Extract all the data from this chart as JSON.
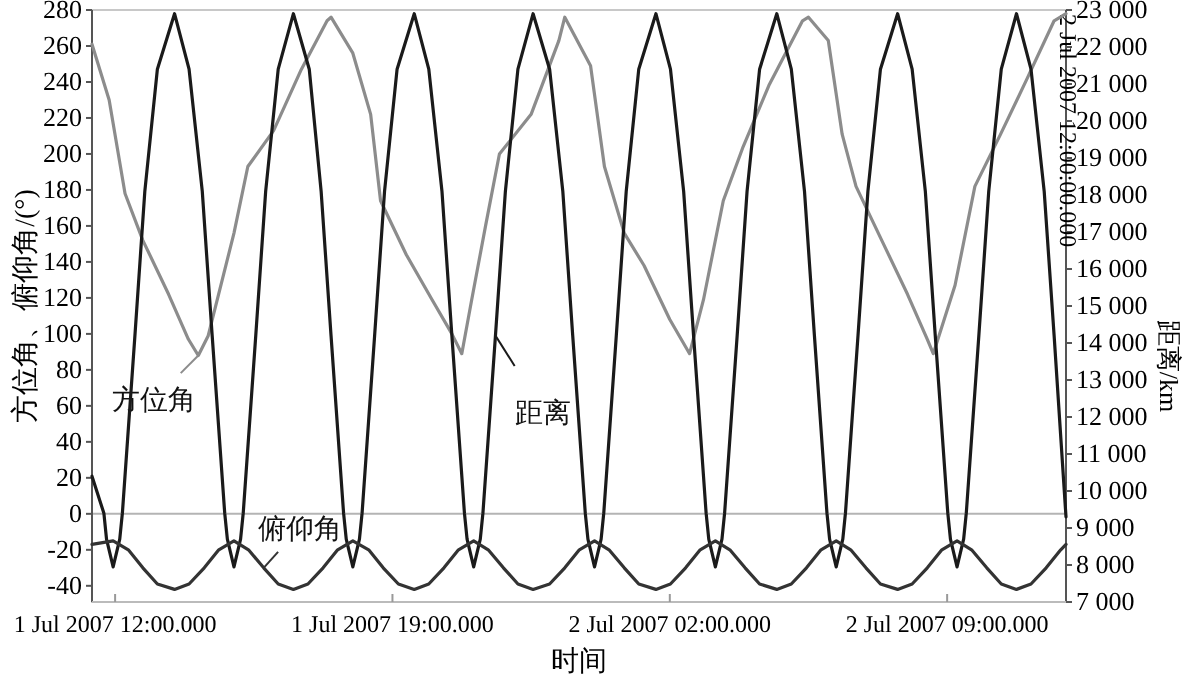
{
  "chart_data": {
    "type": "line",
    "xlabel": "时间",
    "ylabel": "方位角、俯仰角/(°)",
    "y2label": "距离/km",
    "xlim": [
      "2007-07-01T11:25",
      "2007-07-02T12:00"
    ],
    "xticks": [
      {
        "value": "2007-07-01T12:00",
        "label": "1 Jul 2007 12:00.000"
      },
      {
        "value": "2007-07-01T19:00",
        "label": "1 Jul 2007 19:00.000"
      },
      {
        "value": "2007-07-02T02:00",
        "label": "2 Jul 2007 02:00.000"
      },
      {
        "value": "2007-07-02T09:00",
        "label": "2 Jul 2007 09:00.000"
      }
    ],
    "ylim": [
      -49,
      280
    ],
    "yticks": [
      -40,
      -20,
      0,
      20,
      40,
      60,
      80,
      100,
      120,
      140,
      160,
      180,
      200,
      220,
      240,
      260,
      280
    ],
    "y2lim": [
      7000,
      23000
    ],
    "y2ticks": [
      {
        "value": 7000,
        "label": "7 000"
      },
      {
        "value": 8000,
        "label": "8 000"
      },
      {
        "value": 9000,
        "label": "9 000"
      },
      {
        "value": 10000,
        "label": "10 000"
      },
      {
        "value": 11000,
        "label": "11 000"
      },
      {
        "value": 12000,
        "label": "12 000"
      },
      {
        "value": 13000,
        "label": "13 000"
      },
      {
        "value": 14000,
        "label": "14 000"
      },
      {
        "value": 15000,
        "label": "15 000"
      },
      {
        "value": 16000,
        "label": "16 000"
      },
      {
        "value": 17000,
        "label": "17 000"
      },
      {
        "value": 18000,
        "label": "18 000"
      },
      {
        "value": 19000,
        "label": "19 000"
      },
      {
        "value": 20000,
        "label": "20 000"
      },
      {
        "value": 21000,
        "label": "21 000"
      },
      {
        "value": 22000,
        "label": "22 000"
      },
      {
        "value": 23000,
        "label": "23 000"
      }
    ],
    "ref_lines": [
      {
        "axis": "y",
        "value": 0,
        "color": "#b4b4b4"
      }
    ],
    "annotations": [
      "2 Jul 2007 12:00:00.000"
    ],
    "series": [
      {
        "name": "方位角",
        "color": "#8c8c8c",
        "x": [
          "2007-07-01T11:25",
          "2007-07-01T11:51",
          "2007-07-01T12:15",
          "2007-07-01T12:42",
          "2007-07-01T13:21",
          "2007-07-01T13:51",
          "2007-07-01T14:06",
          "2007-07-01T14:21",
          "2007-07-01T15:00",
          "2007-07-01T15:21",
          "2007-07-01T16:00",
          "2007-07-01T16:42",
          "2007-07-01T17:21",
          "2007-07-01T17:27",
          "2007-07-01T18:00",
          "2007-07-01T18:27",
          "2007-07-01T18:42",
          "2007-07-01T19:21",
          "2007-07-01T20:00",
          "2007-07-01T20:30",
          "2007-07-01T20:45",
          "2007-07-01T21:00",
          "2007-07-01T21:21",
          "2007-07-01T21:42",
          "2007-07-01T22:30",
          "2007-07-01T23:12",
          "2007-07-01T23:21",
          "2007-07-02T00:00",
          "2007-07-02T00:21",
          "2007-07-02T00:51",
          "2007-07-02T01:21",
          "2007-07-02T02:00",
          "2007-07-02T02:30",
          "2007-07-02T02:51",
          "2007-07-02T03:21",
          "2007-07-02T03:51",
          "2007-07-02T04:30",
          "2007-07-02T05:21",
          "2007-07-02T05:30",
          "2007-07-02T06:00",
          "2007-07-02T06:21",
          "2007-07-02T06:42",
          "2007-07-02T07:21",
          "2007-07-02T08:00",
          "2007-07-02T08:30",
          "2007-07-02T08:39",
          "2007-07-02T09:12",
          "2007-07-02T09:42",
          "2007-07-02T10:21",
          "2007-07-02T11:00",
          "2007-07-02T11:42",
          "2007-07-02T12:00"
        ],
        "values": [
          261,
          230,
          178,
          152,
          122,
          97,
          88,
          99,
          156,
          193,
          213,
          247,
          274,
          276,
          256,
          222,
          174,
          144,
          119,
          100,
          89,
          119,
          160,
          200,
          222,
          263,
          276,
          249,
          193,
          156,
          138,
          108,
          89,
          119,
          174,
          204,
          238,
          274,
          276,
          263,
          211,
          182,
          152,
          122,
          97,
          89,
          127,
          182,
          211,
          241,
          274,
          278
        ]
      },
      {
        "name": "距离",
        "axis": "y2",
        "color": "#1a1a1a",
        "x": [
          "2007-07-01T11:25",
          "2007-07-01T11:43",
          "2007-07-01T11:47",
          "2007-07-01T11:57",
          "2007-07-01T12:07",
          "2007-07-01T12:11",
          "2007-07-01T12:30",
          "2007-07-01T12:45",
          "2007-07-01T13:04",
          "2007-07-01T13:30",
          "2007-07-01T13:52",
          "2007-07-01T14:12",
          "2007-07-01T14:27",
          "2007-07-01T14:46",
          "2007-07-01T14:50",
          "2007-07-01T15:00",
          "2007-07-01T15:10",
          "2007-07-01T15:14",
          "2007-07-01T15:33",
          "2007-07-01T15:48",
          "2007-07-01T16:07",
          "2007-07-01T16:30",
          "2007-07-01T16:54",
          "2007-07-01T17:12",
          "2007-07-01T17:27",
          "2007-07-01T17:46",
          "2007-07-01T17:50",
          "2007-07-01T18:00",
          "2007-07-01T18:10",
          "2007-07-01T18:14",
          "2007-07-01T18:33",
          "2007-07-01T18:48",
          "2007-07-01T19:07",
          "2007-07-01T19:33",
          "2007-07-01T19:55",
          "2007-07-01T20:15",
          "2007-07-01T20:30",
          "2007-07-01T20:49",
          "2007-07-01T20:53",
          "2007-07-01T21:03",
          "2007-07-01T21:13",
          "2007-07-01T21:17",
          "2007-07-01T21:36",
          "2007-07-01T21:51",
          "2007-07-01T22:10",
          "2007-07-01T22:33",
          "2007-07-01T22:58",
          "2007-07-01T23:18",
          "2007-07-01T23:33",
          "2007-07-01T23:52",
          "2007-07-01T23:56",
          "2007-07-02T00:06",
          "2007-07-02T00:16",
          "2007-07-02T00:20",
          "2007-07-02T00:39",
          "2007-07-02T00:54",
          "2007-07-02T01:13",
          "2007-07-02T01:39",
          "2007-07-02T02:01",
          "2007-07-02T02:21",
          "2007-07-02T02:36",
          "2007-07-02T02:55",
          "2007-07-02T02:59",
          "2007-07-02T03:09",
          "2007-07-02T03:19",
          "2007-07-02T03:23",
          "2007-07-02T03:42",
          "2007-07-02T03:57",
          "2007-07-02T04:16",
          "2007-07-02T04:42",
          "2007-07-02T05:04",
          "2007-07-02T05:24",
          "2007-07-02T05:39",
          "2007-07-02T05:58",
          "2007-07-02T06:02",
          "2007-07-02T06:12",
          "2007-07-02T06:22",
          "2007-07-02T06:26",
          "2007-07-02T06:45",
          "2007-07-02T07:00",
          "2007-07-02T07:19",
          "2007-07-02T07:45",
          "2007-07-02T08:07",
          "2007-07-02T08:27",
          "2007-07-02T08:42",
          "2007-07-02T09:01",
          "2007-07-02T09:05",
          "2007-07-02T09:15",
          "2007-07-02T09:25",
          "2007-07-02T09:29",
          "2007-07-02T09:48",
          "2007-07-02T10:03",
          "2007-07-02T10:22",
          "2007-07-02T10:45",
          "2007-07-02T11:07",
          "2007-07-02T11:27",
          "2007-07-02T11:42",
          "2007-07-02T12:00"
        ],
        "values": [
          10400,
          9400,
          8700,
          7950,
          8700,
          9400,
          14200,
          18100,
          21400,
          22900,
          21400,
          18100,
          14200,
          9400,
          8700,
          7950,
          8700,
          9400,
          14200,
          18100,
          21400,
          22900,
          21400,
          18100,
          14200,
          9400,
          8700,
          7950,
          8700,
          9400,
          14200,
          18100,
          21400,
          22900,
          21400,
          18100,
          14200,
          9400,
          8700,
          7950,
          8700,
          9400,
          14200,
          18100,
          21400,
          22900,
          21400,
          18100,
          14200,
          9400,
          8700,
          7950,
          8700,
          9400,
          14200,
          18100,
          21400,
          22900,
          21400,
          18100,
          14200,
          9400,
          8700,
          7950,
          8700,
          9400,
          14200,
          18100,
          21400,
          22900,
          21400,
          18100,
          14200,
          9400,
          8700,
          7950,
          8700,
          9400,
          14200,
          18100,
          21400,
          22900,
          21400,
          18100,
          14200,
          9400,
          8700,
          7950,
          8700,
          9400,
          14200,
          18100,
          21400,
          22900,
          21400,
          18100,
          14200,
          9300
        ]
      },
      {
        "name": "俯仰角",
        "color": "#333333",
        "x": [
          "2007-07-01T11:25",
          "2007-07-01T11:57",
          "2007-07-01T12:20",
          "2007-07-01T12:42",
          "2007-07-01T13:04",
          "2007-07-01T13:30",
          "2007-07-01T13:52",
          "2007-07-01T14:15",
          "2007-07-01T14:37",
          "2007-07-01T15:00",
          "2007-07-01T15:22",
          "2007-07-01T15:45",
          "2007-07-01T16:07",
          "2007-07-01T16:30",
          "2007-07-01T16:52",
          "2007-07-01T17:15",
          "2007-07-01T17:37",
          "2007-07-01T18:00",
          "2007-07-01T18:24",
          "2007-07-01T18:46",
          "2007-07-01T19:09",
          "2007-07-01T19:33",
          "2007-07-01T19:55",
          "2007-07-01T20:18",
          "2007-07-01T20:40",
          "2007-07-01T21:03",
          "2007-07-01T21:25",
          "2007-07-01T21:48",
          "2007-07-01T22:10",
          "2007-07-01T22:33",
          "2007-07-01T22:58",
          "2007-07-01T23:21",
          "2007-07-01T23:43",
          "2007-07-02T00:06",
          "2007-07-02T00:28",
          "2007-07-02T00:51",
          "2007-07-02T01:13",
          "2007-07-02T01:39",
          "2007-07-02T02:01",
          "2007-07-02T02:24",
          "2007-07-02T02:46",
          "2007-07-02T03:09",
          "2007-07-02T03:31",
          "2007-07-02T03:54",
          "2007-07-02T04:16",
          "2007-07-02T04:42",
          "2007-07-02T05:04",
          "2007-07-02T05:27",
          "2007-07-02T05:49",
          "2007-07-02T06:12",
          "2007-07-02T06:34",
          "2007-07-02T06:57",
          "2007-07-02T07:19",
          "2007-07-02T07:45",
          "2007-07-02T08:07",
          "2007-07-02T08:30",
          "2007-07-02T08:52",
          "2007-07-02T09:15",
          "2007-07-02T09:37",
          "2007-07-02T10:00",
          "2007-07-02T10:22",
          "2007-07-02T10:45",
          "2007-07-02T11:07",
          "2007-07-02T11:30",
          "2007-07-02T11:52",
          "2007-07-02T12:00"
        ],
        "values": [
          -17,
          -15,
          -20,
          -30,
          -39,
          -42,
          -39,
          -30,
          -20,
          -15,
          -20,
          -30,
          -39,
          -42,
          -39,
          -30,
          -20,
          -15,
          -20,
          -30,
          -39,
          -42,
          -39,
          -30,
          -20,
          -15,
          -20,
          -30,
          -39,
          -42,
          -39,
          -30,
          -20,
          -15,
          -20,
          -30,
          -39,
          -42,
          -39,
          -30,
          -20,
          -15,
          -20,
          -30,
          -39,
          -42,
          -39,
          -30,
          -20,
          -15,
          -20,
          -30,
          -39,
          -42,
          -39,
          -30,
          -20,
          -15,
          -20,
          -30,
          -39,
          -42,
          -39,
          -30,
          -20,
          -17
        ]
      }
    ]
  }
}
